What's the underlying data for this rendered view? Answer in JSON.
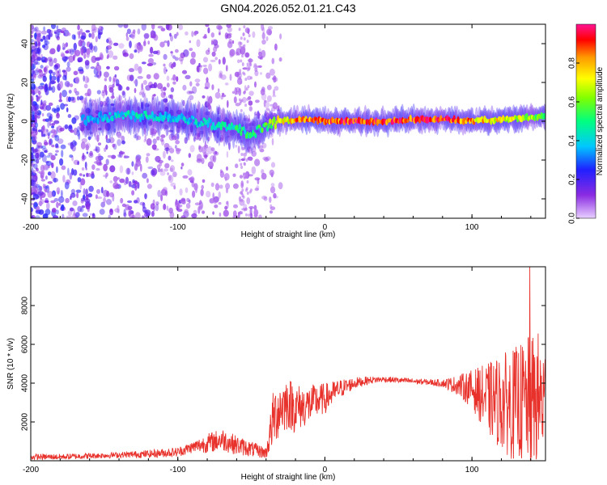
{
  "figure": {
    "title": "GN04.2026.052.01.21.C43"
  },
  "chart_data": [
    {
      "type": "heatmap",
      "title": "GN04.2026.052.01.21.C43",
      "xlabel": "Height of straight line (km)",
      "ylabel": "Frequency (Hz)",
      "xlim": [
        -200,
        150
      ],
      "ylim": [
        -50,
        50
      ],
      "xticks": [
        -200,
        -100,
        0,
        100
      ],
      "xtick_labels": [
        "-200",
        "-100",
        "0",
        "100"
      ],
      "yticks": [
        -40,
        -20,
        0,
        20,
        40
      ],
      "ytick_labels": [
        "-40",
        "-20",
        "0",
        "20",
        "40"
      ],
      "colorbar": {
        "label": "Normalized spectral amplitude",
        "range": [
          0,
          1
        ],
        "ticks": [
          0.0,
          0.2,
          0.4,
          0.6,
          0.8
        ],
        "tick_labels": [
          "0.0",
          "0.2",
          "0.4",
          "0.6",
          "0.8"
        ],
        "colormap": [
          "#e8d0ff",
          "#8a2be2",
          "#2020ff",
          "#00c8ff",
          "#00ff80",
          "#80ff00",
          "#ffff00",
          "#ff9900",
          "#ff0000",
          "#ff1493"
        ]
      },
      "ridge": {
        "description_values": "dominant frequency (Hz) versus height (km)",
        "x": [
          -160,
          -140,
          -120,
          -100,
          -80,
          -60,
          -50,
          -40,
          -30,
          -20,
          -10,
          0,
          20,
          40,
          60,
          80,
          100,
          120,
          140,
          150
        ],
        "y": [
          1,
          3,
          3,
          2,
          -1,
          -4,
          -7,
          -2,
          0,
          1,
          1,
          0,
          0,
          0,
          1,
          1,
          0,
          1,
          2,
          3
        ],
        "peak_amplitude": [
          0.35,
          0.4,
          0.4,
          0.35,
          0.4,
          0.45,
          0.45,
          0.5,
          0.7,
          0.8,
          0.85,
          0.9,
          0.95,
          0.95,
          0.95,
          0.95,
          0.8,
          0.7,
          0.6,
          0.5
        ]
      },
      "grid": false
    },
    {
      "type": "line",
      "xlabel": "Height of straight line (km)",
      "ylabel": "SNR (10 * v/v)",
      "xlim": [
        -200,
        150
      ],
      "ylim": [
        0,
        10000
      ],
      "xticks": [
        -200,
        -100,
        0,
        100
      ],
      "xtick_labels": [
        "-200",
        "-100",
        "0",
        "100"
      ],
      "yticks": [
        2000,
        4000,
        6000,
        8000
      ],
      "ytick_labels": [
        "2000",
        "4000",
        "6000",
        "8000"
      ],
      "grid": false,
      "series": [
        {
          "color": "#e8312b",
          "x": [
            -200,
            -180,
            -160,
            -140,
            -120,
            -100,
            -90,
            -80,
            -70,
            -60,
            -50,
            -40,
            -35,
            -30,
            -25,
            -20,
            -15,
            -10,
            -5,
            0,
            10,
            20,
            30,
            40,
            50,
            60,
            70,
            80,
            90,
            100,
            110,
            120,
            130,
            140,
            145,
            150
          ],
          "y": [
            200,
            200,
            250,
            300,
            350,
            450,
            700,
            900,
            1100,
            800,
            600,
            400,
            2200,
            2800,
            3000,
            2700,
            2800,
            2900,
            3100,
            3200,
            3700,
            4000,
            4150,
            4200,
            4150,
            4100,
            4050,
            4000,
            3900,
            3700,
            3200,
            3000,
            2900,
            3000,
            3200,
            3000
          ],
          "spread": [
            150,
            150,
            150,
            150,
            200,
            250,
            300,
            500,
            600,
            500,
            400,
            300,
            1500,
            1500,
            1400,
            1300,
            1100,
            1000,
            900,
            800,
            500,
            300,
            200,
            150,
            150,
            150,
            150,
            200,
            500,
            1000,
            1800,
            2500,
            3000,
            3500,
            3500,
            3000
          ],
          "max_value": 10000
        }
      ]
    }
  ]
}
